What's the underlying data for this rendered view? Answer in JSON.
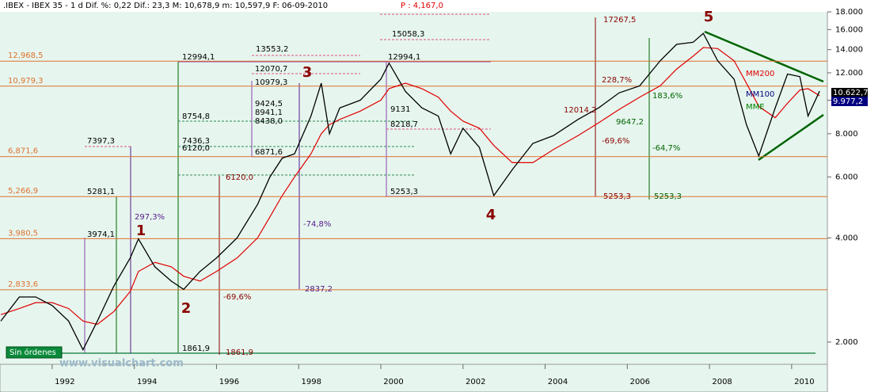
{
  "chart_data": {
    "type": "line",
    "header": ".IBEX - IBEX 35 -   1 d Dif. %: 0,22 Dif.: 23,3 M: 10,678,9 m: 10,597,9 F: 06-09-2010",
    "header_price": "P : 4,167,0",
    "log_scale": true,
    "xlim": [
      1990.73,
      2010.87
    ],
    "ylim": [
      1725,
      18000
    ],
    "xticks": [
      1992,
      1994,
      1996,
      1998,
      2000,
      2002,
      2004,
      2006,
      2008,
      2010
    ],
    "yticks": [
      {
        "value": 2000,
        "label": "2.000"
      },
      {
        "value": 4000,
        "label": "4.000"
      },
      {
        "value": 6000,
        "label": "6.000"
      },
      {
        "value": 8000,
        "label": "8.000"
      },
      {
        "value": 10000,
        "label": "10.000"
      },
      {
        "value": 12000,
        "label": "12.000"
      },
      {
        "value": 14000,
        "label": "14.000"
      },
      {
        "value": 16000,
        "label": "16.000"
      },
      {
        "value": 18000,
        "label": "18.000"
      }
    ],
    "x": [
      1990.75,
      1991.2,
      1991.6,
      1992.0,
      1992.4,
      1992.75,
      1993.1,
      1993.5,
      1993.9,
      1994.1,
      1994.5,
      1994.9,
      1995.2,
      1995.6,
      1996.0,
      1996.5,
      1997.0,
      1997.3,
      1997.6,
      1997.9,
      1998.3,
      1998.55,
      1998.75,
      1999.0,
      1999.5,
      2000.0,
      2000.2,
      2000.6,
      2001.0,
      2001.4,
      2001.7,
      2002.0,
      2002.4,
      2002.75,
      2003.2,
      2003.7,
      2004.2,
      2004.8,
      2005.3,
      2005.8,
      2006.3,
      2006.8,
      2007.2,
      2007.6,
      2007.85,
      2008.2,
      2008.6,
      2008.9,
      2009.2,
      2009.6,
      2009.9,
      2010.2,
      2010.4,
      2010.68
    ],
    "series": [
      {
        "color": "#000000",
        "values": [
          2300,
          2700,
          2700,
          2550,
          2300,
          1900,
          2300,
          2900,
          3500,
          3974,
          3300,
          3000,
          2840,
          3200,
          3500,
          4000,
          5000,
          6000,
          6800,
          7000,
          9000,
          11200,
          8000,
          9500,
          10000,
          11500,
          12800,
          10600,
          9500,
          9000,
          7000,
          8300,
          7300,
          5300,
          6300,
          7500,
          7900,
          8800,
          9500,
          10500,
          11000,
          13000,
          14500,
          14700,
          15600,
          13000,
          11500,
          8500,
          6900,
          9500,
          11900,
          11700,
          9000,
          10622.7
        ]
      },
      {
        "name": "MM200",
        "color": "#e00000",
        "values": [
          2400,
          2500,
          2600,
          2600,
          2500,
          2300,
          2250,
          2450,
          2800,
          3200,
          3400,
          3300,
          3100,
          3000,
          3200,
          3500,
          4000,
          4600,
          5300,
          6000,
          7000,
          8000,
          8500,
          8800,
          9300,
          10000,
          10800,
          11200,
          10800,
          10200,
          9300,
          8700,
          8300,
          7400,
          6600,
          6600,
          7200,
          7900,
          8600,
          9400,
          10200,
          11000,
          12300,
          13400,
          14200,
          14100,
          13000,
          11200,
          9600,
          8900,
          9800,
          10700,
          10800,
          10300
        ]
      }
    ],
    "levels": [
      {
        "value": 12968.5,
        "label": "12,968,5"
      },
      {
        "value": 10979.3,
        "label": "10,979,3"
      },
      {
        "value": 6871.6,
        "label": "6,871,6"
      },
      {
        "value": 5266.9,
        "label": "5,266,9"
      },
      {
        "value": 3980.5,
        "label": "3,980,5"
      },
      {
        "value": 2833.6,
        "label": "2,833,6"
      }
    ],
    "level_color": "#e07030",
    "last_prices": [
      {
        "text": "10.622,7",
        "color": "#000000"
      },
      {
        "text": "9.977,2",
        "color": "#000080"
      }
    ],
    "annotations": [
      {
        "text": "1",
        "color": "#8b0000"
      },
      {
        "text": "2",
        "color": "#8b0000"
      },
      {
        "text": "3",
        "color": "#8b0000"
      },
      {
        "text": "4",
        "color": "#8b0000"
      },
      {
        "text": "5",
        "color": "#8b0000"
      },
      {
        "text": "12994,1",
        "color": "#000000"
      },
      {
        "text": "13553,2",
        "color": "#000000"
      },
      {
        "text": "15058,3",
        "color": "#000000"
      },
      {
        "text": "17267,5",
        "color": "#8b0000"
      },
      {
        "text": "12994,1",
        "color": "#000000"
      },
      {
        "text": "5253,3",
        "color": "#000000"
      },
      {
        "text": "5253,3",
        "color": "#8b0000"
      },
      {
        "text": "5253,3",
        "color": "#006400"
      },
      {
        "text": "1861,9",
        "color": "#000000"
      },
      {
        "text": "1861,9",
        "color": "#8b0000"
      },
      {
        "text": "7397,3",
        "color": "#000000"
      },
      {
        "text": "3974,1",
        "color": "#000000"
      },
      {
        "text": "5281,1",
        "color": "#000000"
      },
      {
        "text": "297,3%",
        "color": "#551a8b"
      },
      {
        "text": "-74,8%",
        "color": "#551a8b"
      },
      {
        "text": "-69,6%",
        "color": "#8b0000"
      },
      {
        "text": "228,7%",
        "color": "#8b0000"
      },
      {
        "text": "183,6%",
        "color": "#006400"
      },
      {
        "text": "-64,7%",
        "color": "#006400"
      },
      {
        "text": "-69,6%",
        "color": "#8b0000"
      },
      {
        "text": "9647,2",
        "color": "#006400"
      },
      {
        "text": "12014,2",
        "color": "#8b0000"
      },
      {
        "text": "6120,0",
        "color": "#000000"
      },
      {
        "text": "6120,0",
        "color": "#8b0000"
      },
      {
        "text": "2837,2",
        "color": "#551a8b"
      },
      {
        "text": "7436,3",
        "color": "#000000"
      },
      {
        "text": "8754,8",
        "color": "#000000"
      },
      {
        "text": "10979,3",
        "color": "#000000"
      },
      {
        "text": "12070,7",
        "color": "#000000"
      },
      {
        "text": "9424,5",
        "color": "#000000"
      },
      {
        "text": "8941,1",
        "color": "#000000"
      },
      {
        "text": "8438,0",
        "color": "#000000"
      },
      {
        "text": "6871,6",
        "color": "#000000"
      },
      {
        "text": "9131",
        "color": "#000000"
      },
      {
        "text": "8218,7",
        "color": "#000000"
      },
      {
        "text": "MM200",
        "color": "#e00000"
      },
      {
        "text": "MM100",
        "color": "#000080"
      },
      {
        "text": "MME",
        "color": "#008000"
      }
    ],
    "status": "Sin órdenes",
    "watermark": "www.visualchart.com"
  }
}
